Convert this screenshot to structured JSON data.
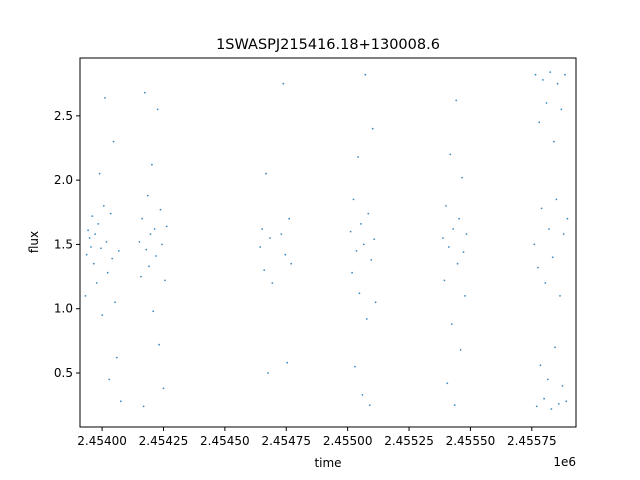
{
  "chart_data": {
    "type": "scatter",
    "title": "1SWASPJ215416.18+130008.6",
    "xlabel": "time",
    "ylabel": "flux",
    "x_offset_label": "1e6",
    "xlim": [
      2453910,
      2455930
    ],
    "ylim": [
      0.08,
      2.95
    ],
    "xticks": [
      2.454,
      2.45425,
      2.4545,
      2.45475,
      2.455,
      2.45525,
      2.4555,
      2.45575
    ],
    "xtick_labels": [
      "2.45400",
      "2.45425",
      "2.45450",
      "2.45475",
      "2.45500",
      "2.45525",
      "2.45550",
      "2.45575"
    ],
    "yticks": [
      0.5,
      1.0,
      1.5,
      2.0,
      2.5
    ],
    "ytick_labels": [
      "0.5",
      "1.0",
      "1.5",
      "2.0",
      "2.5"
    ],
    "grid": false,
    "marker_color": "#1f77b4",
    "series": [
      {
        "points": [
          {
            "x": 2453932,
            "y": 1.1
          },
          {
            "x": 2453937,
            "y": 1.42
          },
          {
            "x": 2453943,
            "y": 1.61
          },
          {
            "x": 2453949,
            "y": 1.55
          },
          {
            "x": 2453955,
            "y": 1.48
          },
          {
            "x": 2453960,
            "y": 1.72
          },
          {
            "x": 2453966,
            "y": 1.35
          },
          {
            "x": 2453972,
            "y": 1.58
          },
          {
            "x": 2453978,
            "y": 1.2
          },
          {
            "x": 2453984,
            "y": 1.66
          },
          {
            "x": 2453990,
            "y": 2.05
          },
          {
            "x": 2453995,
            "y": 1.47
          },
          {
            "x": 2454001,
            "y": 0.95
          },
          {
            "x": 2454007,
            "y": 1.8
          },
          {
            "x": 2454012,
            "y": 2.64
          },
          {
            "x": 2454018,
            "y": 1.52
          },
          {
            "x": 2454023,
            "y": 1.28
          },
          {
            "x": 2454029,
            "y": 0.45
          },
          {
            "x": 2454035,
            "y": 1.74
          },
          {
            "x": 2454041,
            "y": 1.39
          },
          {
            "x": 2454047,
            "y": 2.3
          },
          {
            "x": 2454053,
            "y": 1.05
          },
          {
            "x": 2454060,
            "y": 0.62
          },
          {
            "x": 2454068,
            "y": 1.45
          },
          {
            "x": 2454076,
            "y": 0.28
          },
          {
            "x": 2454152,
            "y": 1.52
          },
          {
            "x": 2454158,
            "y": 1.25
          },
          {
            "x": 2454163,
            "y": 1.7
          },
          {
            "x": 2454169,
            "y": 0.24
          },
          {
            "x": 2454174,
            "y": 2.68
          },
          {
            "x": 2454180,
            "y": 1.46
          },
          {
            "x": 2454186,
            "y": 1.88
          },
          {
            "x": 2454191,
            "y": 1.33
          },
          {
            "x": 2454197,
            "y": 1.58
          },
          {
            "x": 2454203,
            "y": 2.12
          },
          {
            "x": 2454208,
            "y": 0.98
          },
          {
            "x": 2454214,
            "y": 1.62
          },
          {
            "x": 2454220,
            "y": 1.41
          },
          {
            "x": 2454226,
            "y": 2.55
          },
          {
            "x": 2454232,
            "y": 0.72
          },
          {
            "x": 2454238,
            "y": 1.77
          },
          {
            "x": 2454244,
            "y": 1.5
          },
          {
            "x": 2454250,
            "y": 0.38
          },
          {
            "x": 2454256,
            "y": 1.22
          },
          {
            "x": 2454263,
            "y": 1.64
          },
          {
            "x": 2454644,
            "y": 1.48
          },
          {
            "x": 2454652,
            "y": 1.62
          },
          {
            "x": 2454660,
            "y": 1.3
          },
          {
            "x": 2454668,
            "y": 2.05
          },
          {
            "x": 2454676,
            "y": 0.5
          },
          {
            "x": 2454684,
            "y": 1.55
          },
          {
            "x": 2454693,
            "y": 1.2
          },
          {
            "x": 2454730,
            "y": 1.58
          },
          {
            "x": 2454738,
            "y": 2.75
          },
          {
            "x": 2454746,
            "y": 1.42
          },
          {
            "x": 2454754,
            "y": 0.58
          },
          {
            "x": 2454762,
            "y": 1.7
          },
          {
            "x": 2454770,
            "y": 1.35
          },
          {
            "x": 2455012,
            "y": 1.6
          },
          {
            "x": 2455018,
            "y": 1.28
          },
          {
            "x": 2455024,
            "y": 1.85
          },
          {
            "x": 2455030,
            "y": 0.55
          },
          {
            "x": 2455036,
            "y": 1.45
          },
          {
            "x": 2455042,
            "y": 2.18
          },
          {
            "x": 2455048,
            "y": 1.12
          },
          {
            "x": 2455054,
            "y": 1.66
          },
          {
            "x": 2455060,
            "y": 0.33
          },
          {
            "x": 2455066,
            "y": 1.5
          },
          {
            "x": 2455072,
            "y": 2.82
          },
          {
            "x": 2455078,
            "y": 0.92
          },
          {
            "x": 2455084,
            "y": 1.74
          },
          {
            "x": 2455090,
            "y": 0.25
          },
          {
            "x": 2455096,
            "y": 1.38
          },
          {
            "x": 2455102,
            "y": 2.4
          },
          {
            "x": 2455108,
            "y": 1.54
          },
          {
            "x": 2455114,
            "y": 1.05
          },
          {
            "x": 2455388,
            "y": 1.55
          },
          {
            "x": 2455394,
            "y": 1.22
          },
          {
            "x": 2455400,
            "y": 1.8
          },
          {
            "x": 2455406,
            "y": 0.42
          },
          {
            "x": 2455412,
            "y": 1.48
          },
          {
            "x": 2455418,
            "y": 2.2
          },
          {
            "x": 2455424,
            "y": 0.88
          },
          {
            "x": 2455430,
            "y": 1.62
          },
          {
            "x": 2455436,
            "y": 0.25
          },
          {
            "x": 2455442,
            "y": 2.62
          },
          {
            "x": 2455448,
            "y": 1.35
          },
          {
            "x": 2455454,
            "y": 1.7
          },
          {
            "x": 2455460,
            "y": 0.68
          },
          {
            "x": 2455466,
            "y": 2.02
          },
          {
            "x": 2455472,
            "y": 1.44
          },
          {
            "x": 2455478,
            "y": 1.1
          },
          {
            "x": 2455484,
            "y": 1.58
          },
          {
            "x": 2455760,
            "y": 1.5
          },
          {
            "x": 2455765,
            "y": 2.82
          },
          {
            "x": 2455770,
            "y": 0.24
          },
          {
            "x": 2455775,
            "y": 1.32
          },
          {
            "x": 2455780,
            "y": 2.45
          },
          {
            "x": 2455785,
            "y": 0.56
          },
          {
            "x": 2455790,
            "y": 1.78
          },
          {
            "x": 2455795,
            "y": 2.78
          },
          {
            "x": 2455800,
            "y": 0.3
          },
          {
            "x": 2455805,
            "y": 1.2
          },
          {
            "x": 2455810,
            "y": 2.6
          },
          {
            "x": 2455815,
            "y": 0.45
          },
          {
            "x": 2455820,
            "y": 1.62
          },
          {
            "x": 2455825,
            "y": 2.84
          },
          {
            "x": 2455830,
            "y": 0.22
          },
          {
            "x": 2455835,
            "y": 1.4
          },
          {
            "x": 2455840,
            "y": 2.3
          },
          {
            "x": 2455845,
            "y": 0.7
          },
          {
            "x": 2455850,
            "y": 1.85
          },
          {
            "x": 2455855,
            "y": 2.75
          },
          {
            "x": 2455860,
            "y": 0.26
          },
          {
            "x": 2455865,
            "y": 1.1
          },
          {
            "x": 2455870,
            "y": 2.55
          },
          {
            "x": 2455875,
            "y": 0.4
          },
          {
            "x": 2455880,
            "y": 1.58
          },
          {
            "x": 2455885,
            "y": 2.82
          },
          {
            "x": 2455890,
            "y": 0.28
          },
          {
            "x": 2455895,
            "y": 1.7
          }
        ]
      }
    ]
  }
}
